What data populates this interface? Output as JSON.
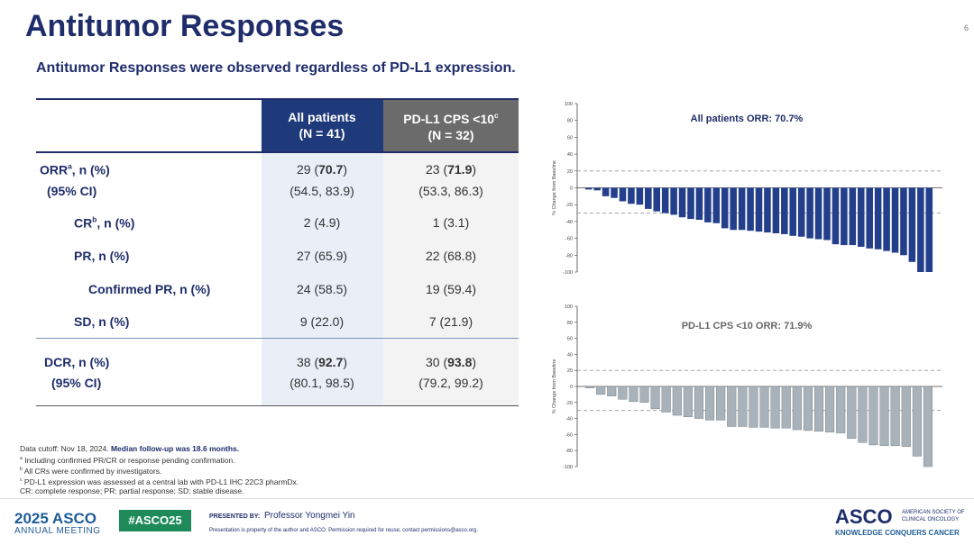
{
  "header": {
    "title": "Antitumor Responses",
    "page": "6",
    "subtitle": "Antitumor Responses were observed regardless of PD-L1 expression."
  },
  "table": {
    "columns": [
      [
        "All patients",
        "(N = 41)"
      ],
      [
        "PD-L1 CPS <10",
        "c",
        "(N = 32)"
      ]
    ],
    "rows": [
      {
        "label": [
          "ORR",
          "a",
          ", n (%)"
        ],
        "ci_label": "(95% CI)",
        "values": [
          [
            "29 (",
            "70.7",
            ")"
          ],
          [
            "23 (",
            "71.9",
            ")"
          ]
        ],
        "ci_values": [
          "(54.5, 83.9)",
          "(53.3, 86.3)"
        ]
      },
      {
        "label": [
          "CR",
          "b",
          ", n (%)"
        ],
        "values": [
          [
            "2 (4.9)"
          ],
          [
            "1 (3.1)"
          ]
        ]
      },
      {
        "label": [
          "PR, n (%)"
        ],
        "values": [
          [
            "27 (65.9)"
          ],
          [
            "22 (68.8)"
          ]
        ]
      },
      {
        "label": [
          "Confirmed PR, n (%)"
        ],
        "values": [
          [
            "24 (58.5)"
          ],
          [
            "19 (59.4)"
          ]
        ]
      },
      {
        "label": [
          "SD, n (%)"
        ],
        "values": [
          [
            "9 (22.0)"
          ],
          [
            "7 (21.9)"
          ]
        ]
      },
      {
        "label": [
          "DCR, n (%)"
        ],
        "ci_label": "(95% CI)",
        "values": [
          [
            "38 (",
            "92.7",
            ")"
          ],
          [
            "30 (",
            "93.8",
            ")"
          ]
        ],
        "ci_values": [
          "(80.1, 98.5)",
          "(79.2, 99.2)"
        ]
      }
    ]
  },
  "chart_data": [
    {
      "type": "bar",
      "title": "All patients ORR: 70.7%",
      "y_label": "% Change from Baseline",
      "color": "#233f8c",
      "values": [
        -2,
        -3,
        -10,
        -12,
        -16,
        -19,
        -20,
        -25,
        -28,
        -30,
        -32,
        -35,
        -37,
        -38,
        -41,
        -42,
        -48,
        -50,
        -50,
        -51,
        -52,
        -53,
        -54,
        -55,
        -57,
        -58,
        -60,
        -61,
        -62,
        -67,
        -68,
        -68,
        -70,
        -72,
        -73,
        -75,
        -77,
        -80,
        -88,
        -100,
        -100
      ],
      "ylim": [
        -100,
        100
      ],
      "yticks": [
        -100,
        -80,
        -60,
        -40,
        -20,
        0,
        20,
        40,
        60,
        80,
        100
      ],
      "reference_lines": [
        20,
        -30
      ]
    },
    {
      "type": "bar",
      "title": "PD-L1 CPS <10 ORR: 71.9%",
      "y_label": "% Change from Baseline",
      "color": "#a8b2ba",
      "values": [
        -2,
        -10,
        -12,
        -16,
        -19,
        -20,
        -28,
        -32,
        -36,
        -38,
        -40,
        -42,
        -42,
        -50,
        -50,
        -51,
        -51,
        -52,
        -52,
        -54,
        -55,
        -56,
        -57,
        -58,
        -65,
        -70,
        -73,
        -74,
        -74,
        -75,
        -87,
        -100
      ],
      "ylim": [
        -100,
        100
      ],
      "yticks": [
        -100,
        -80,
        -60,
        -40,
        -20,
        0,
        20,
        40,
        60,
        80,
        100
      ],
      "reference_lines": [
        20,
        -30
      ]
    }
  ],
  "notes": [
    [
      "Data cutoff: Nov 18, 2024. ",
      "Median follow-up was 18.6 months."
    ],
    [
      "a",
      "Including confirmed PR/CR or response pending confirmation."
    ],
    [
      "b",
      "All CRs were confirmed by investigators."
    ],
    [
      "c",
      "PD-L1 expression was assessed at a central lab with PD-L1 IHC 22C3 pharmDx."
    ],
    [
      "CR: complete response; PR: partial response; SD: stable disease."
    ]
  ],
  "footer": {
    "meeting": [
      "2025 ASCO",
      "ANNUAL MEETING"
    ],
    "hashtag": "#ASCO25",
    "presented_by": "PRESENTED BY:",
    "presenter": "Professor Yongmei Yin",
    "disclaimer": "Presentation is property of the author and ASCO. Permission required for reuse; contact permissions@asco.org.",
    "logo": [
      "ASCO",
      "AMERICAN SOCIETY OF",
      "CLINICAL ONCOLOGY",
      "KNOWLEDGE CONQUERS CANCER"
    ]
  }
}
